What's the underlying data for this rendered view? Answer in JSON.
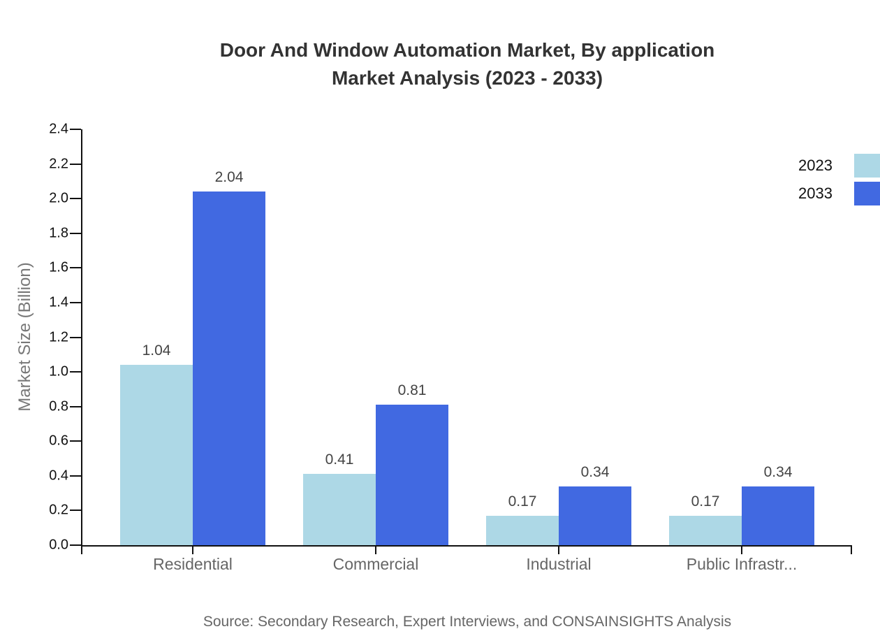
{
  "page": {
    "title_line1": "Door And Window Automation Market, By application",
    "title_line2": "Market Analysis (2023 - 2033)",
    "source": "Source: Secondary Research, Expert Interviews, and CONSAINSIGHTS Analysis"
  },
  "colors": {
    "series_2023": "#ADD8E6",
    "series_2033": "#4169E1",
    "axis": "#111111",
    "title_text": "#333333",
    "category_text": "#666666",
    "value_label_text": "#444444",
    "axis_title_text": "#777777",
    "source_text": "#666666"
  },
  "chart_data": {
    "type": "bar",
    "title": "Door And Window Automation Market, By application Market Analysis (2023 - 2033)",
    "categories": [
      "Residential",
      "Commercial",
      "Industrial",
      "Public Infrastr..."
    ],
    "series": [
      {
        "name": "2023",
        "color": "#ADD8E6",
        "values": [
          1.04,
          0.41,
          0.17,
          0.17
        ]
      },
      {
        "name": "2033",
        "color": "#4169E1",
        "values": [
          2.04,
          0.81,
          0.34,
          0.34
        ]
      }
    ],
    "xlabel": "",
    "ylabel": "Market Size (Billion)",
    "ylim": [
      0,
      2.4
    ],
    "ytick_step": 0.2,
    "yticks": [
      "0.0",
      "0.2",
      "0.4",
      "0.6",
      "0.8",
      "1.0",
      "1.2",
      "1.4",
      "1.6",
      "1.8",
      "2.0",
      "2.2",
      "2.4"
    ],
    "grid": false,
    "legend_position": "top-right",
    "value_labels": true
  }
}
